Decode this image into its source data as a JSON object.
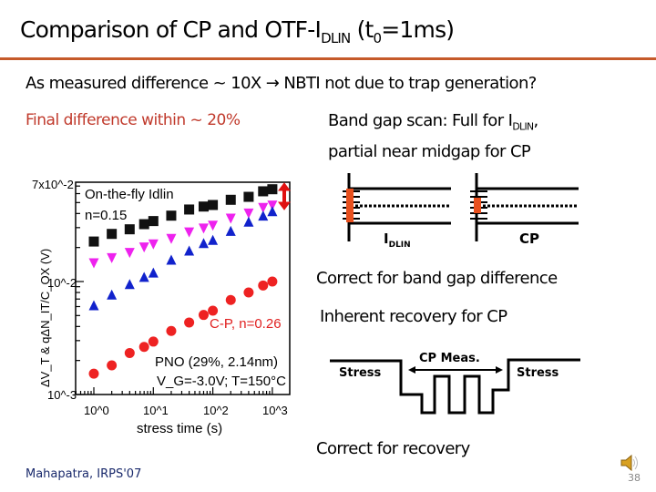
{
  "slide": {
    "title_main": "Comparison of CP and OTF-I",
    "title_sub": "DLIN",
    "title_paren_open": " (t",
    "title_paren_sub": "0",
    "title_paren_rest": "=1ms)",
    "line1": "As measured difference ~ 10X → NBTI not due to trap generation?",
    "line2": "Final difference within ~ 20%",
    "bandgap_line_a": "Band gap scan: Full for I",
    "bandgap_line_a_sub": "DLIN",
    "bandgap_line_a_end": ",",
    "bandgap_line_b": "partial near midgap for CP",
    "diagram_idlin_label": "I",
    "diagram_idlin_sub": "DLIN",
    "diagram_cp_label": "CP",
    "correct_bandgap": "Correct for band gap difference",
    "inherent_recovery": "Inherent recovery for CP",
    "wave_stress_left": "Stress",
    "wave_cp_meas": "CP Meas.",
    "wave_stress_right": "Stress",
    "correct_recovery": "Correct for recovery",
    "citation": "Mahapatra, IRPS'07",
    "page_number": "38",
    "speaker_icon": "speaker-icon",
    "accent_color": "#c55a2a"
  },
  "chart_data": {
    "type": "scatter",
    "xscale": "log",
    "yscale": "log",
    "xlim": [
      0.5,
      1500
    ],
    "ylim": [
      0.001,
      0.07
    ],
    "xlabel": "stress time (s)",
    "ylabel": "ΔV_T & qΔN_IT/C_OX (V)",
    "xticks": [
      "10^0",
      "10^1",
      "10^2",
      "10^3"
    ],
    "yticks": [
      "10^-3",
      "10^-2",
      "7x10^-2"
    ],
    "x": [
      1,
      2,
      4,
      7,
      10,
      20,
      40,
      70,
      100,
      200,
      400,
      700,
      1000
    ],
    "series": [
      {
        "marker": "square",
        "color": "#111111",
        "values": [
          0.0226,
          0.0264,
          0.029,
          0.0322,
          0.0343,
          0.0383,
          0.0434,
          0.0461,
          0.0476,
          0.0529,
          0.0562,
          0.0629,
          0.0656
        ]
      },
      {
        "marker": "triangle-down",
        "color": "#ee22ee",
        "values": [
          0.0145,
          0.0161,
          0.0179,
          0.02,
          0.0213,
          0.0238,
          0.0272,
          0.0294,
          0.0312,
          0.036,
          0.04,
          0.0448,
          0.047
        ]
      },
      {
        "marker": "triangle-up",
        "color": "#1122cc",
        "values": [
          0.00617,
          0.00767,
          0.00951,
          0.011,
          0.012,
          0.0156,
          0.0188,
          0.0219,
          0.0234,
          0.0281,
          0.0339,
          0.0383,
          0.042
        ]
      },
      {
        "marker": "circle",
        "color": "#ee2222",
        "values": [
          0.00153,
          0.00181,
          0.00233,
          0.00264,
          0.00294,
          0.00365,
          0.00434,
          0.00506,
          0.00552,
          0.00686,
          0.008,
          0.00923,
          0.01
        ]
      }
    ],
    "annotations": {
      "otf_label": "On-the-fly Idlin",
      "otf_n": "n=0.15",
      "cp_label": "C-P, n=0.26",
      "device": "PNO (29%, 2.14nm)",
      "condition": "V_G=-3.0V; T=150°C"
    }
  }
}
